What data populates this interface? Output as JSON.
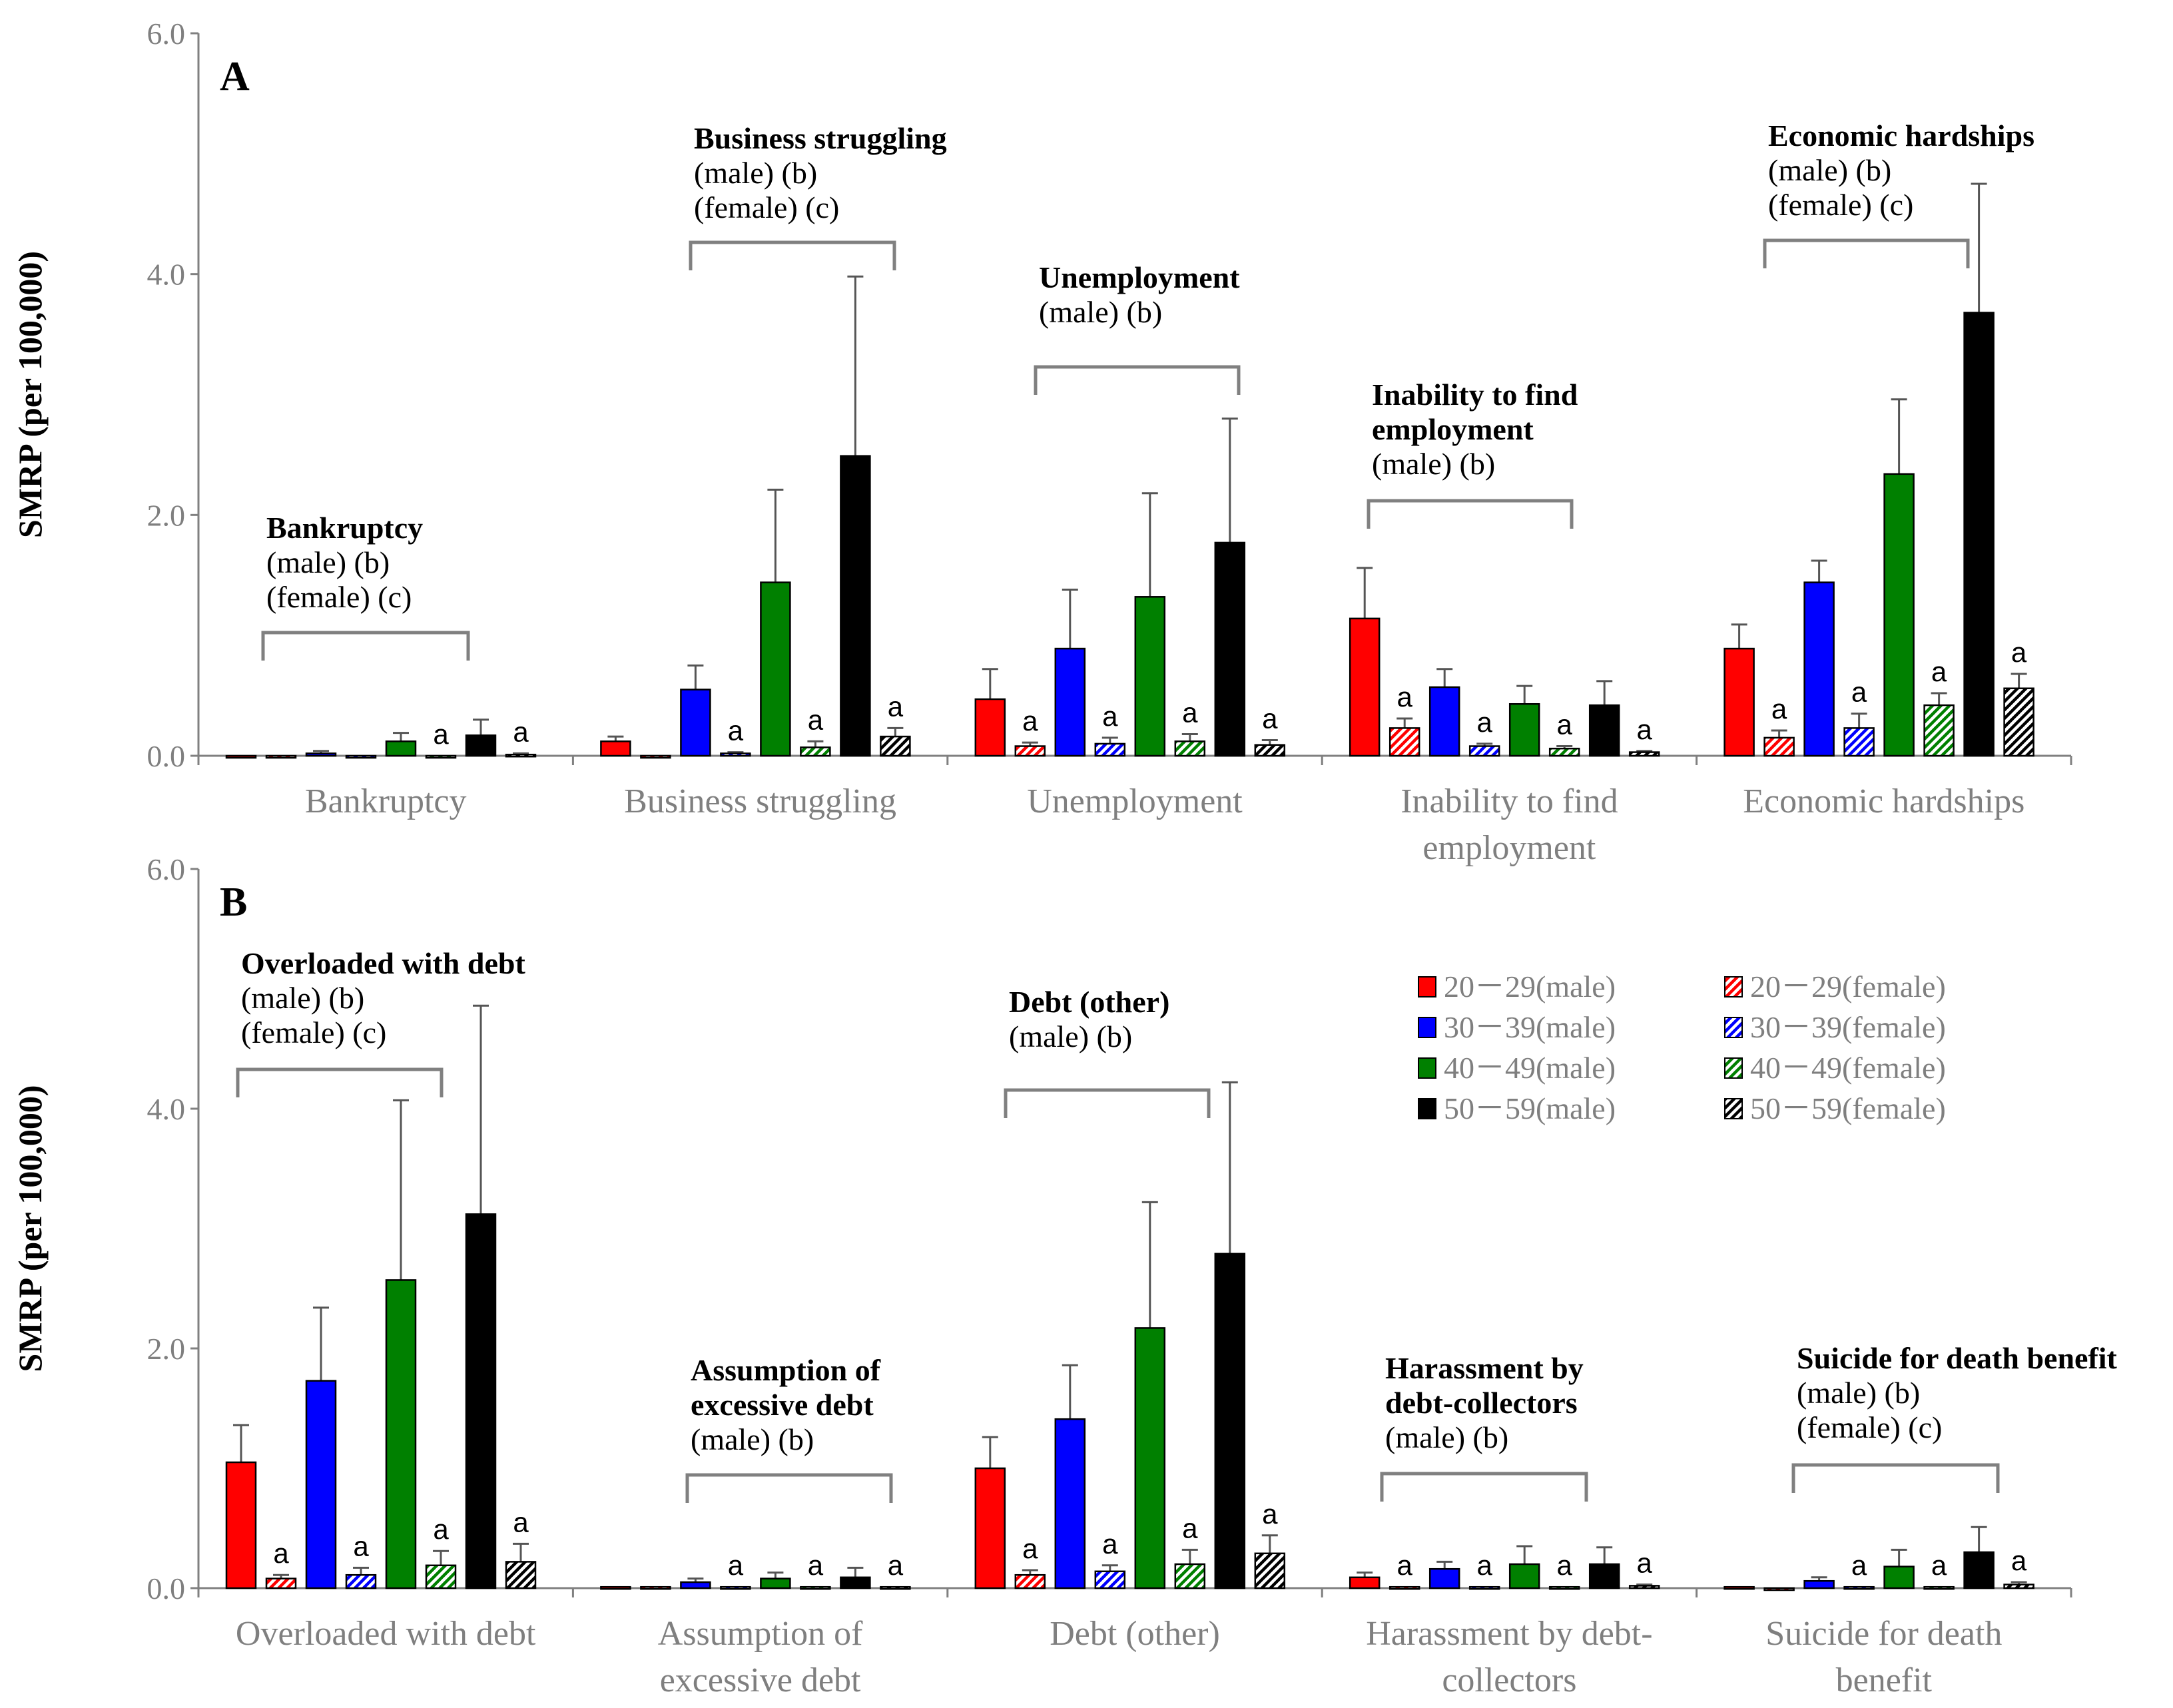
{
  "chart_data": [
    {
      "type": "bar",
      "panel_label": "A",
      "ylabel": "SMRP (per 100,000)",
      "ylim": [
        0,
        6
      ],
      "yticks": [
        "0.0",
        "2.0",
        "4.0",
        "6.0"
      ],
      "categories": [
        {
          "label": [
            "Bankruptcy"
          ],
          "annotation": {
            "title": [
              "Bankruptcy"
            ],
            "lines": [
              "(male) (b)",
              "(female) (c)"
            ]
          }
        },
        {
          "label": [
            "Business struggling"
          ],
          "annotation": {
            "title": [
              "Business struggling"
            ],
            "lines": [
              "(male) (b)",
              "(female) (c)"
            ]
          }
        },
        {
          "label": [
            "Unemployment"
          ],
          "annotation": {
            "title": [
              "Unemployment"
            ],
            "lines": [
              "(male) (b)"
            ]
          }
        },
        {
          "label": [
            "Inability to find",
            "employment"
          ],
          "annotation": {
            "title": [
              "Inability to find",
              "employment"
            ],
            "lines": [
              "(male) (b)"
            ]
          }
        },
        {
          "label": [
            "Economic hardships"
          ],
          "annotation": {
            "title": [
              "Economic hardships"
            ],
            "lines": [
              "(male) (b)",
              "(female) (c)"
            ]
          }
        }
      ],
      "series": [
        {
          "name": "20－29(male)",
          "values": [
            0.0,
            0.12,
            0.47,
            1.14,
            0.89
          ],
          "errors": [
            0.0,
            0.04,
            0.25,
            0.42,
            0.2
          ]
        },
        {
          "name": "20－29(female)",
          "values": [
            0.0,
            0.0,
            0.08,
            0.23,
            0.15
          ],
          "errors": [
            0.0,
            0.0,
            0.03,
            0.08,
            0.06
          ],
          "sig": [
            "",
            "",
            "a",
            "a",
            "a"
          ]
        },
        {
          "name": "30－39(male)",
          "values": [
            0.02,
            0.55,
            0.89,
            0.57,
            1.44
          ],
          "errors": [
            0.02,
            0.2,
            0.49,
            0.15,
            0.18
          ]
        },
        {
          "name": "30－39(female)",
          "values": [
            0.0,
            0.02,
            0.1,
            0.08,
            0.23
          ],
          "errors": [
            0.0,
            0.01,
            0.05,
            0.02,
            0.12
          ],
          "sig": [
            "",
            "a",
            "a",
            "a",
            "a"
          ]
        },
        {
          "name": "40－49(male)",
          "values": [
            0.12,
            1.44,
            1.32,
            0.43,
            2.34
          ],
          "errors": [
            0.07,
            0.77,
            0.86,
            0.15,
            0.62
          ]
        },
        {
          "name": "40－49(female)",
          "values": [
            0.0,
            0.07,
            0.12,
            0.06,
            0.42
          ],
          "errors": [
            0.0,
            0.05,
            0.06,
            0.02,
            0.1
          ],
          "sig": [
            "a",
            "a",
            "a",
            "a",
            "a"
          ]
        },
        {
          "name": "50－59(male)",
          "values": [
            0.17,
            2.49,
            1.77,
            0.42,
            3.68
          ],
          "errors": [
            0.13,
            1.49,
            1.03,
            0.2,
            1.07
          ]
        },
        {
          "name": "50－59(female)",
          "values": [
            0.01,
            0.16,
            0.09,
            0.03,
            0.56
          ],
          "errors": [
            0.01,
            0.07,
            0.04,
            0.01,
            0.12
          ],
          "sig": [
            "a",
            "a",
            "a",
            "a",
            "a"
          ]
        }
      ]
    },
    {
      "type": "bar",
      "panel_label": "B",
      "ylabel": "SMRP (per 100,000)",
      "ylim": [
        0,
        6
      ],
      "yticks": [
        "0.0",
        "2.0",
        "4.0",
        "6.0"
      ],
      "categories": [
        {
          "label": [
            "Overloaded with debt"
          ],
          "annotation": {
            "title": [
              "Overloaded with debt"
            ],
            "lines": [
              "(male) (b)",
              "(female) (c)"
            ]
          }
        },
        {
          "label": [
            "Assumption of",
            "excessive debt"
          ],
          "annotation": {
            "title": [
              "Assumption of",
              "excessive debt"
            ],
            "lines": [
              "(male) (b)"
            ]
          }
        },
        {
          "label": [
            "Debt (other)"
          ],
          "annotation": {
            "title": [
              "Debt (other)"
            ],
            "lines": [
              "(male) (b)"
            ]
          }
        },
        {
          "label": [
            "Harassment by debt-",
            "collectors"
          ],
          "annotation": {
            "title": [
              "Harassment by",
              "debt-collectors"
            ],
            "lines": [
              "(male) (b)"
            ]
          }
        },
        {
          "label": [
            "Suicide for death",
            "benefit"
          ],
          "annotation": {
            "title": [
              "Suicide for death benefit"
            ],
            "lines": [
              "(male) (b)",
              "(female) (c)"
            ]
          }
        }
      ],
      "series": [
        {
          "name": "20－29(male)",
          "values": [
            1.05,
            0.01,
            1.0,
            0.09,
            0.01
          ],
          "errors": [
            0.31,
            0.0,
            0.26,
            0.04,
            0.0
          ]
        },
        {
          "name": "20－29(female)",
          "values": [
            0.08,
            0.01,
            0.11,
            0.01,
            0.0
          ],
          "errors": [
            0.03,
            0.0,
            0.04,
            0.0,
            0.0
          ],
          "sig": [
            "a",
            "",
            "a",
            "a",
            ""
          ]
        },
        {
          "name": "30－39(male)",
          "values": [
            1.73,
            0.05,
            1.41,
            0.16,
            0.06
          ],
          "errors": [
            0.61,
            0.03,
            0.45,
            0.06,
            0.03
          ]
        },
        {
          "name": "30－39(female)",
          "values": [
            0.11,
            0.01,
            0.14,
            0.01,
            0.01
          ],
          "errors": [
            0.06,
            0.0,
            0.05,
            0.0,
            0.0
          ],
          "sig": [
            "a",
            "a",
            "a",
            "a",
            "a"
          ]
        },
        {
          "name": "40－49(male)",
          "values": [
            2.57,
            0.08,
            2.17,
            0.2,
            0.18
          ],
          "errors": [
            1.5,
            0.05,
            1.05,
            0.15,
            0.14
          ]
        },
        {
          "name": "40－49(female)",
          "values": [
            0.19,
            0.01,
            0.2,
            0.01,
            0.01
          ],
          "errors": [
            0.12,
            0.0,
            0.12,
            0.0,
            0.0
          ],
          "sig": [
            "a",
            "a",
            "a",
            "a",
            "a"
          ]
        },
        {
          "name": "50－59(male)",
          "values": [
            3.12,
            0.09,
            2.79,
            0.2,
            0.3
          ],
          "errors": [
            1.74,
            0.08,
            1.43,
            0.14,
            0.21
          ]
        },
        {
          "name": "50－59(female)",
          "values": [
            0.22,
            0.01,
            0.29,
            0.02,
            0.03
          ],
          "errors": [
            0.15,
            0.0,
            0.15,
            0.01,
            0.02
          ],
          "sig": [
            "a",
            "a",
            "a",
            "a",
            "a"
          ]
        }
      ]
    }
  ],
  "legend": {
    "placement": "panel B, upper-right",
    "items": [
      {
        "label": "20－29(male)",
        "color": "#ff0000",
        "pattern": "solid"
      },
      {
        "label": "20－29(female)",
        "color": "#ff0000",
        "pattern": "hatch"
      },
      {
        "label": "30－39(male)",
        "color": "#0000ff",
        "pattern": "solid"
      },
      {
        "label": "30－39(female)",
        "color": "#0000ff",
        "pattern": "hatch"
      },
      {
        "label": "40－49(male)",
        "color": "#008000",
        "pattern": "solid"
      },
      {
        "label": "40－49(female)",
        "color": "#008000",
        "pattern": "hatch"
      },
      {
        "label": "50－59(male)",
        "color": "#000000",
        "pattern": "solid"
      },
      {
        "label": "50－59(female)",
        "color": "#000000",
        "pattern": "hatch"
      }
    ]
  },
  "colors": {
    "age_20_29": "#ff0000",
    "age_30_39": "#0000ff",
    "age_40_49": "#008000",
    "age_50_59": "#000000",
    "axis": "#808080"
  }
}
